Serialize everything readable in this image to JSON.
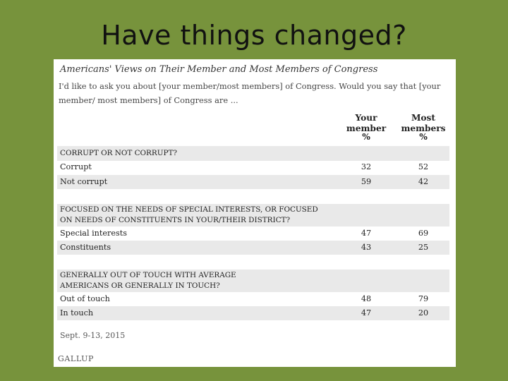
{
  "slide_title": "Have things changed?",
  "table": {
    "heading": "Americans' Views on Their Member and Most Members of Congress",
    "question": "I'd like to ask you about [your member/most members] of Congress. Would you say that [your member/ most members] of Congress are ...",
    "col1": [
      "Your",
      "member",
      "%"
    ],
    "col2": [
      "Most",
      "members",
      "%"
    ],
    "sections": [
      {
        "header": [
          "CORRUPT OR NOT CORRUPT?"
        ],
        "rows": [
          {
            "label": "Corrupt",
            "v1": "32",
            "v2": "52"
          },
          {
            "label": "Not corrupt",
            "v1": "59",
            "v2": "42"
          }
        ]
      },
      {
        "header": [
          "FOCUSED ON THE NEEDS OF SPECIAL INTERESTS, OR FOCUSED",
          "ON NEEDS OF CONSTITUENTS IN YOUR/THEIR DISTRICT?"
        ],
        "rows": [
          {
            "label": "Special interests",
            "v1": "47",
            "v2": "69"
          },
          {
            "label": "Constituents",
            "v1": "43",
            "v2": "25"
          }
        ]
      },
      {
        "header": [
          "GENERALLY OUT OF TOUCH WITH AVERAGE",
          "AMERICANS OR GENERALLY IN TOUCH?"
        ],
        "rows": [
          {
            "label": "Out of touch",
            "v1": "48",
            "v2": "79"
          },
          {
            "label": "In touch",
            "v1": "47",
            "v2": "20"
          }
        ]
      }
    ],
    "date": "Sept. 9-13, 2015",
    "source": "GALLUP"
  }
}
